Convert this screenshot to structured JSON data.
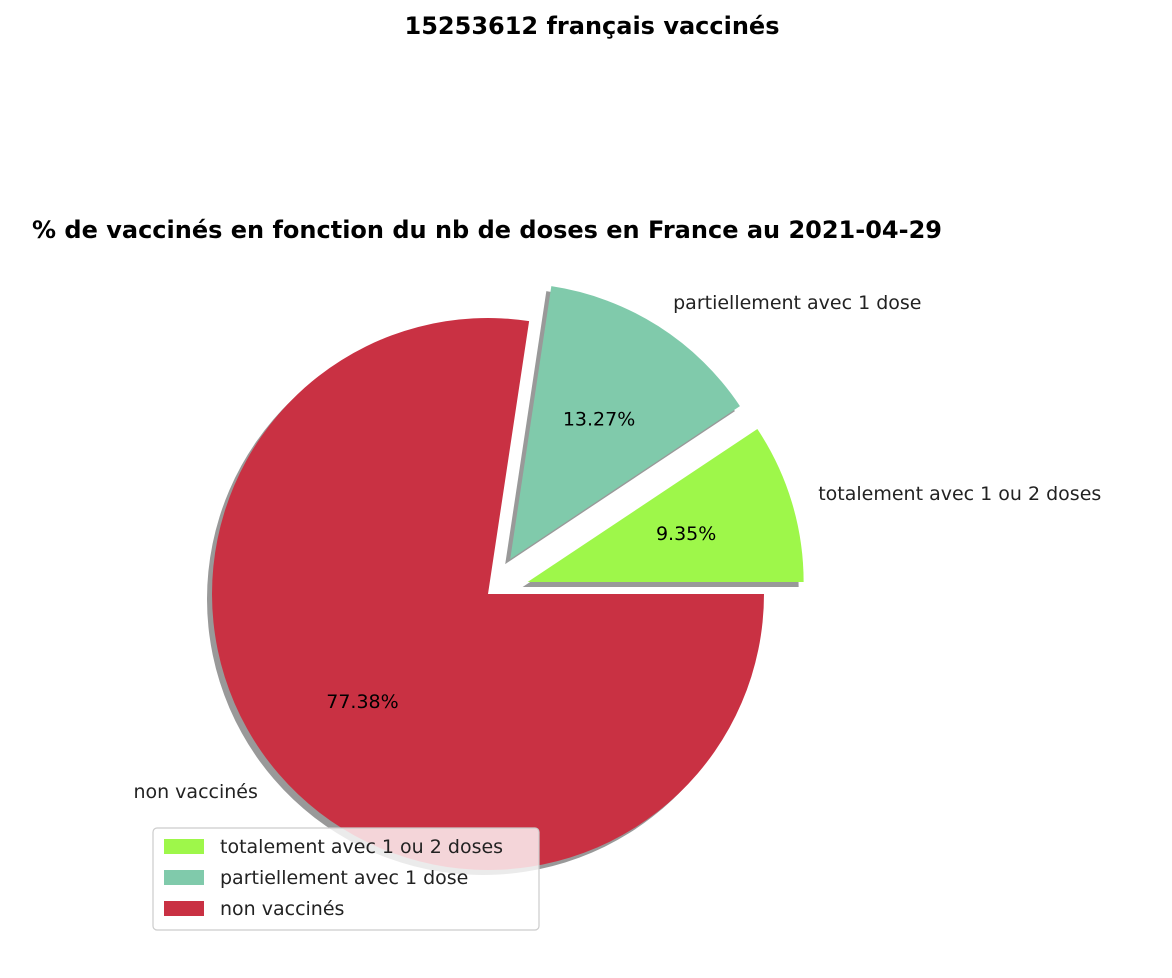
{
  "chart_data": {
    "type": "pie",
    "suptitle": "15253612 français vaccinés",
    "title": "% de vaccinés en fonction du nb de doses en France au 2021-04-29",
    "start_angle_deg": 0,
    "direction": "counterclockwise",
    "shadow": true,
    "slices": [
      {
        "label": "totalement avec 1 ou 2 doses",
        "value": 9.35,
        "pct_label": "9.35%",
        "color": "#9ef74a",
        "exploded": true
      },
      {
        "label": "partiellement avec 1 dose",
        "value": 13.27,
        "pct_label": "13.27%",
        "color": "#80caab",
        "exploded": true
      },
      {
        "label": "non vaccinés",
        "value": 77.38,
        "pct_label": "77.38%",
        "color": "#c93143",
        "exploded": false
      }
    ],
    "legend": {
      "placement": "lower-left",
      "entries": [
        "totalement avec 1 ou 2 doses",
        "partiellement avec 1 dose",
        "non vaccinés"
      ]
    }
  }
}
